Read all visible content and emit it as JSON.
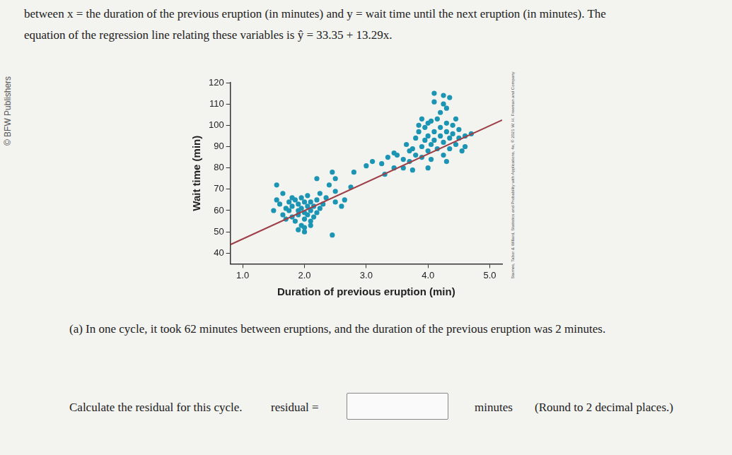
{
  "page": {
    "intro": [
      "between x = the duration of the previous eruption (in minutes) and y = wait time until the next eruption (in minutes). The",
      "equation of the regression line relating these variables is ŷ = 33.35 + 13.29x."
    ],
    "left_credit": "© BFW Publishers",
    "right_credit": "Starnes, Tabor & Willard, Statistics and Probability with Applications, 4e, © 2021 W. H. Freeman and Company",
    "question": "(a) In one cycle, it took 62 minutes between eruptions, and the duration of the previous eruption was 2 minutes.",
    "prompt": "Calculate the residual for this cycle.",
    "answer_label": "residual =",
    "unit": "minutes",
    "instruction": "(Round to 2 decimal places.)"
  },
  "chart_data": {
    "type": "scatter",
    "x_label": "Duration of previous eruption (min)",
    "y_label": "Wait time (min)",
    "xlim": [
      0.8,
      5.2
    ],
    "ylim": [
      35,
      120
    ],
    "xticks": [
      {
        "value": 1,
        "label": "1.0"
      },
      {
        "value": 2,
        "label": "2.0"
      },
      {
        "value": 3,
        "label": "3.0"
      },
      {
        "value": 4,
        "label": "4.0"
      },
      {
        "value": 5,
        "label": "5.0"
      }
    ],
    "yticks": [
      40,
      50,
      60,
      70,
      80,
      90,
      100,
      110,
      120
    ],
    "grid": false,
    "series": [
      {
        "type": "scatter",
        "color": "#1b95b3",
        "marker": "circle",
        "x": [
          1.6,
          1.65,
          1.7,
          1.7,
          1.75,
          1.75,
          1.8,
          1.8,
          1.8,
          1.85,
          1.85,
          1.9,
          1.9,
          1.9,
          1.95,
          1.95,
          1.95,
          2.0,
          2.0,
          2.0,
          2.0,
          2.05,
          2.05,
          2.05,
          2.1,
          2.1,
          2.1,
          2.15,
          2.15,
          2.2,
          2.2,
          2.25,
          2.25,
          2.3,
          2.35,
          1.55,
          1.5,
          1.65,
          2.0,
          1.9,
          2.1,
          2.4,
          2.5,
          2.5,
          2.6,
          2.65,
          2.75,
          2.5,
          1.55,
          2.2,
          2.45,
          2.8,
          3.0,
          3.1,
          3.25,
          3.35,
          3.45,
          3.5,
          3.6,
          3.7,
          3.3,
          3.45,
          2.45,
          3.6,
          3.65,
          3.7,
          3.75,
          3.8,
          3.8,
          3.85,
          3.9,
          3.9,
          3.95,
          3.95,
          4.0,
          4.0,
          4.0,
          4.05,
          4.05,
          4.1,
          4.1,
          4.15,
          4.15,
          4.2,
          4.2,
          4.25,
          4.25,
          4.3,
          4.3,
          4.35,
          4.35,
          4.4,
          4.4,
          4.45,
          4.5,
          4.5,
          4.55,
          4.6,
          4.7,
          4.2,
          4.3,
          4.1,
          4.35,
          4.05,
          3.9,
          3.75,
          4.0,
          4.3,
          4.6,
          3.85,
          4.45,
          4.25,
          4.1,
          4.25
        ],
        "values": [
          63,
          58,
          61,
          56,
          64,
          60,
          66,
          62,
          57,
          55,
          65,
          63,
          60,
          58,
          66,
          61,
          53,
          64,
          59,
          56,
          52,
          62,
          67,
          58,
          60,
          55,
          64,
          62,
          57,
          65,
          59,
          68,
          61,
          63,
          66,
          65,
          60,
          68,
          50,
          51,
          53,
          72,
          69,
          64,
          62,
          65,
          71,
          75,
          72,
          75,
          78,
          78,
          81,
          83,
          82,
          85,
          87,
          86,
          80,
          88,
          77,
          80,
          48.5,
          84,
          91,
          83,
          89,
          86,
          94,
          97,
          90,
          85,
          99,
          93,
          88,
          95,
          101,
          91,
          84,
          97,
          93,
          103,
          89,
          95,
          99,
          92,
          86,
          97,
          101,
          94,
          89,
          96,
          100,
          91,
          94,
          98,
          88,
          95,
          96,
          106,
          108,
          111,
          113,
          102,
          103,
          79,
          80,
          83,
          90,
          100,
          103,
          110,
          115,
          114
        ]
      },
      {
        "type": "line",
        "color": "#9e3f48",
        "line_style": "solid",
        "x": [
          0.8,
          5.2
        ],
        "values": [
          44.0,
          102.5
        ]
      }
    ]
  }
}
